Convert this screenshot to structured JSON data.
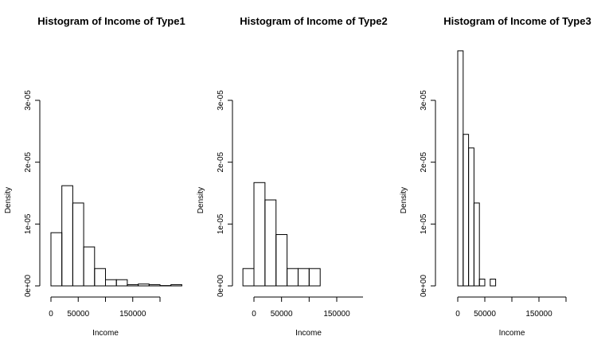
{
  "chart_data": [
    {
      "type": "bar",
      "title": "Histogram of Income of Type1",
      "xlabel": "Income",
      "ylabel": "Density",
      "xlim": [
        0,
        240000
      ],
      "ylim": [
        0,
        3e-05
      ],
      "x_ticks": [
        0,
        50000,
        150000
      ],
      "x_tick_labels": [
        "0",
        "50000",
        "150000"
      ],
      "y_ticks": [
        0,
        1e-05,
        2e-05,
        3e-05
      ],
      "y_tick_labels": [
        "0e+00",
        "1e-05",
        "2e-05",
        "3e-05"
      ],
      "bin_edges": [
        0,
        20000,
        40000,
        60000,
        80000,
        100000,
        120000,
        140000,
        160000,
        180000,
        200000,
        220000,
        240000
      ],
      "values": [
        8.6e-06,
        1.62e-05,
        1.34e-05,
        6.3e-06,
        2.8e-06,
        1e-06,
        1e-06,
        2e-07,
        3e-07,
        2e-07,
        5e-08,
        2e-07
      ]
    },
    {
      "type": "bar",
      "title": "Histogram of Income of Type2",
      "xlabel": "Income",
      "ylabel": "Density",
      "xlim": [
        0,
        200000
      ],
      "ylim": [
        0,
        3e-05
      ],
      "x_ticks": [
        0,
        50000,
        150000
      ],
      "x_tick_labels": [
        "0",
        "50000",
        "150000"
      ],
      "y_ticks": [
        0,
        1e-05,
        2e-05,
        3e-05
      ],
      "y_tick_labels": [
        "0e+00",
        "1e-05",
        "2e-05",
        "3e-05"
      ],
      "bin_edges": [
        -20000,
        0,
        20000,
        40000,
        60000,
        80000,
        100000,
        120000
      ],
      "values": [
        2.8e-06,
        1.67e-05,
        1.39e-05,
        8.3e-06,
        2.8e-06,
        2.8e-06,
        2.8e-06
      ]
    },
    {
      "type": "bar",
      "title": "Histogram of Income of Type3",
      "xlabel": "Income",
      "ylabel": "Density",
      "xlim": [
        0,
        200000
      ],
      "ylim": [
        0,
        3e-05
      ],
      "x_ticks": [
        0,
        50000,
        150000
      ],
      "x_tick_labels": [
        "0",
        "50000",
        "150000"
      ],
      "y_ticks": [
        0,
        1e-05,
        2e-05,
        3e-05
      ],
      "y_tick_labels": [
        "0e+00",
        "1e-05",
        "2e-05",
        "3e-05"
      ],
      "bin_edges": [
        0,
        10000,
        20000,
        30000,
        40000,
        50000,
        60000,
        70000
      ],
      "values": [
        3.8e-05,
        2.45e-05,
        2.23e-05,
        1.34e-05,
        1.1e-06,
        0,
        1.1e-06
      ]
    }
  ]
}
